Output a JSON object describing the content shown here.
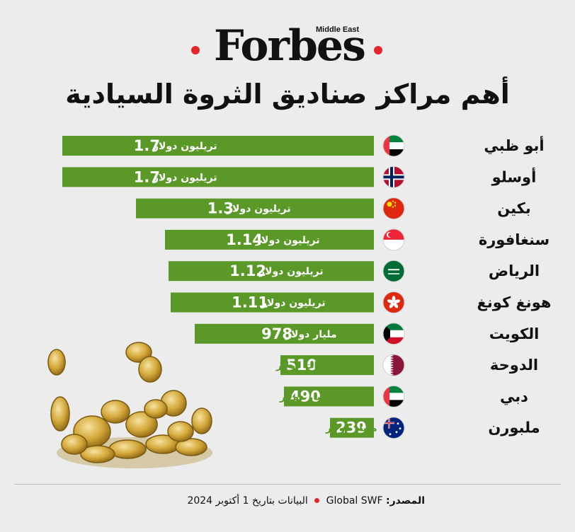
{
  "header": {
    "logo": "Forbes",
    "logo_sub": "Middle East",
    "title": "أهم مراكز صناديق الثروة السيادية"
  },
  "colors": {
    "bar": "#5a9928",
    "bar_text": "#ffffff",
    "label_outside": "#5a9928",
    "accent_dot": "#e3262c",
    "background": "#ececec"
  },
  "chart_data": {
    "type": "bar",
    "orientation": "horizontal",
    "title": "أهم مراكز صناديق الثروة السيادية",
    "categories": [
      "أبو ظبي",
      "أوسلو",
      "بكين",
      "سنغافورة",
      "الرياض",
      "هونغ كونغ",
      "الكويت",
      "الدوحة",
      "دبي",
      "ملبورن"
    ],
    "values_usd_billion": [
      1700,
      1700,
      1300,
      1140,
      1120,
      1110,
      978,
      510,
      490,
      239
    ],
    "value_labels": [
      "1.7",
      "1.7",
      "1.3",
      "1.14",
      "1.12",
      "1.11",
      "978",
      "510",
      "490",
      "239"
    ],
    "unit_labels": [
      "تريليون دولار",
      "تريليون دولار",
      "تريليون دولار",
      "تريليون دولار",
      "تريليون دولار",
      "تريليون دولار",
      "مليار دولار",
      "مليارات دولار",
      "مليار دولار",
      "مليار دولار"
    ],
    "flags": [
      "uae-flag-icon",
      "norway-flag-icon",
      "china-flag-icon",
      "singapore-flag-icon",
      "saudi-flag-icon",
      "hongkong-flag-icon",
      "kuwait-flag-icon",
      "qatar-flag-icon",
      "uae-flag-icon",
      "australia-flag-icon"
    ],
    "grid": false,
    "legend": "none"
  },
  "illustration": "gold-coins-icon",
  "footer": {
    "source_label": "المصدر:",
    "source": "Global SWF",
    "date_note": "البيانات بتاريخ 1 أكتوبر 2024"
  }
}
